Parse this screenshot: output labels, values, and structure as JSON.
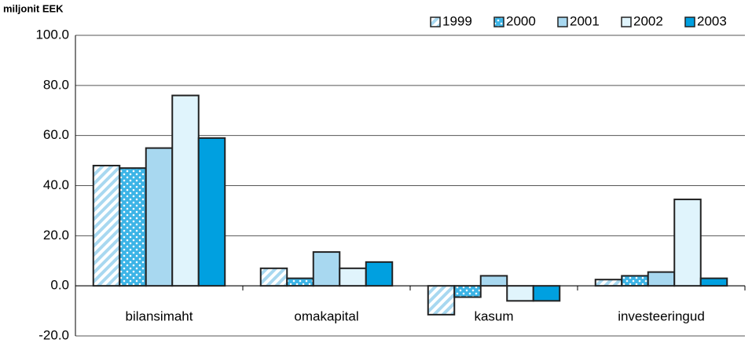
{
  "chart_data": {
    "type": "bar",
    "y_label": "miljonit EEK",
    "categories": [
      "bilansimaht",
      "omakapital",
      "kasum",
      "investeeringud"
    ],
    "series": [
      {
        "name": "1999",
        "color": "#a8d8f0",
        "pattern": "diagonal",
        "values": [
          48,
          7,
          -11.5,
          2.5
        ]
      },
      {
        "name": "2000",
        "color": "#3cb4e6",
        "pattern": "dots",
        "values": [
          47,
          3,
          -4.5,
          4
        ]
      },
      {
        "name": "2001",
        "color": "#a8d8f0",
        "values": [
          55,
          13.5,
          4,
          5.5
        ]
      },
      {
        "name": "2002",
        "color": "#e0f4fc",
        "values": [
          76,
          7,
          -6,
          34.5
        ]
      },
      {
        "name": "2003",
        "color": "#00a0e0",
        "values": [
          59,
          9.5,
          -6,
          3
        ]
      }
    ],
    "ylim": [
      -20,
      100
    ],
    "yticks": [
      {
        "value": -20,
        "label": "-20.0"
      },
      {
        "value": 0,
        "label": "0.0"
      },
      {
        "value": 20,
        "label": "20.0"
      },
      {
        "value": 40,
        "label": "40.0"
      },
      {
        "value": 60,
        "label": "60.0"
      },
      {
        "value": 80,
        "label": "80.0"
      },
      {
        "value": 100,
        "label": "100.0"
      }
    ],
    "grid": true,
    "legend": "top-right"
  }
}
